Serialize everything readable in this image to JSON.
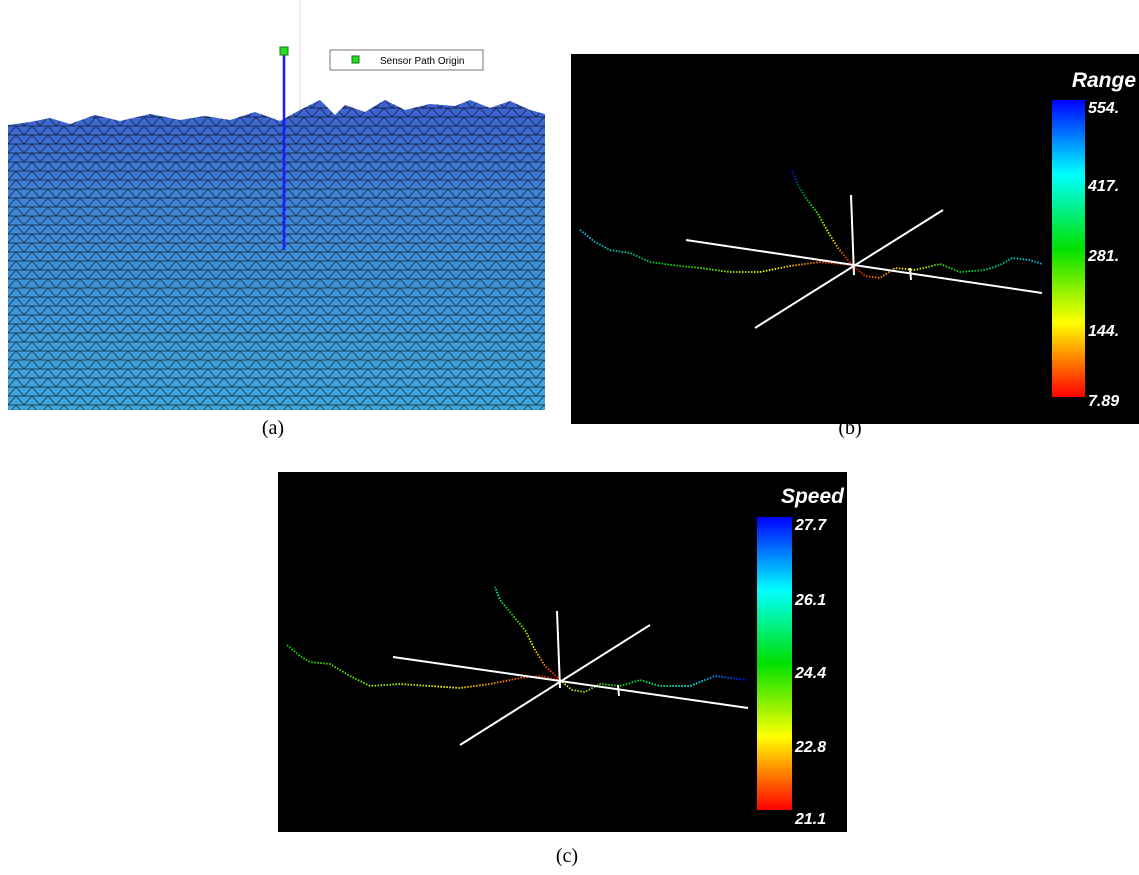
{
  "panels": [
    {
      "label": "(a)",
      "legend": "Sensor Path Origin"
    },
    {
      "label": "(b)",
      "colorbar": {
        "title": "Range",
        "ticks": [
          "554.",
          "417.",
          "281.",
          "144.",
          "7.89"
        ]
      }
    },
    {
      "label": "(c)",
      "colorbar": {
        "title": "Speed",
        "ticks": [
          "27.7",
          "26.1",
          "24.4",
          "22.8",
          "21.1"
        ]
      }
    }
  ]
}
